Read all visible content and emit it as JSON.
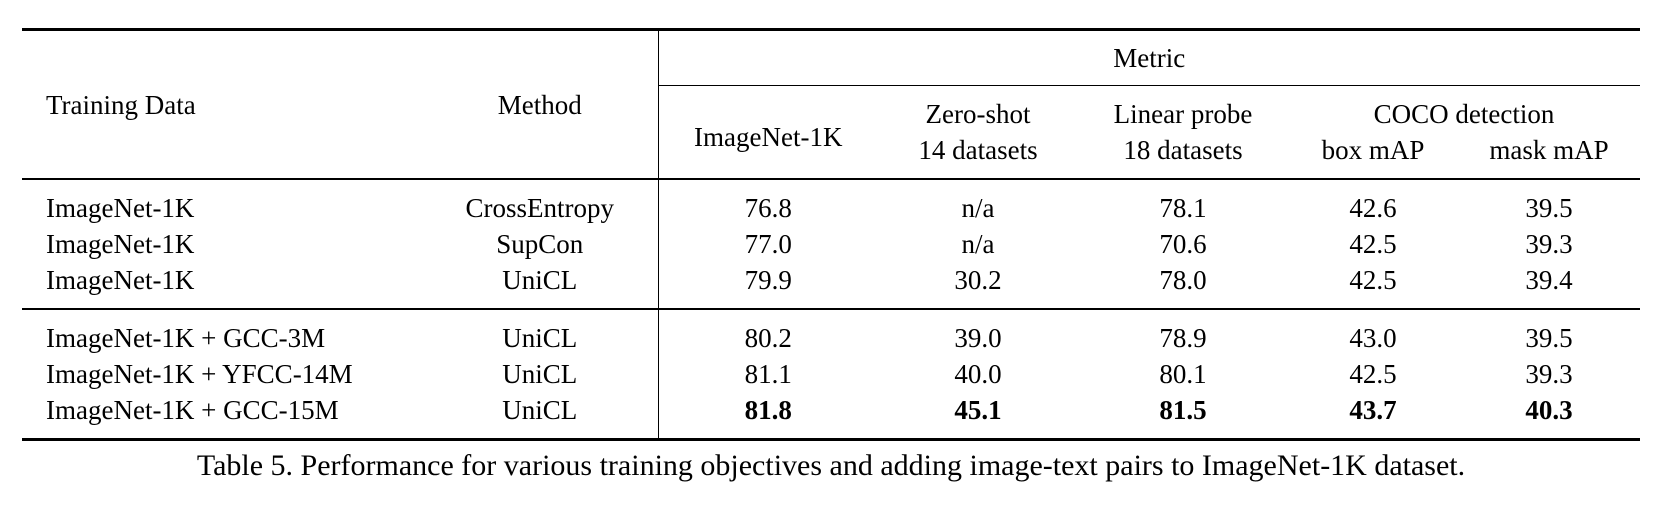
{
  "header": {
    "training_data": "Training Data",
    "method": "Method",
    "metric": "Metric",
    "imagenet": "ImageNet-1K",
    "zero_shot": [
      "Zero-shot",
      "14 datasets"
    ],
    "linear_probe": [
      "Linear probe",
      "18 datasets"
    ],
    "coco": "COCO detection",
    "box": "box mAP",
    "mask": "mask mAP"
  },
  "groups": [
    [
      [
        "ImageNet-1K",
        "CrossEntropy",
        "76.8",
        "n/a",
        "78.1",
        "42.6",
        "39.5"
      ],
      [
        "ImageNet-1K",
        "SupCon",
        "77.0",
        "n/a",
        "70.6",
        "42.5",
        "39.3"
      ],
      [
        "ImageNet-1K",
        "UniCL",
        "79.9",
        "30.2",
        "78.0",
        "42.5",
        "39.4"
      ]
    ],
    [
      [
        "ImageNet-1K + GCC-3M",
        "UniCL",
        "80.2",
        "39.0",
        "78.9",
        "43.0",
        "39.5"
      ],
      [
        "ImageNet-1K + YFCC-14M",
        "UniCL",
        "81.1",
        "40.0",
        "80.1",
        "42.5",
        "39.3"
      ],
      [
        "ImageNet-1K + GCC-15M",
        "UniCL",
        "81.8",
        "45.1",
        "81.5",
        "43.7",
        "40.3"
      ]
    ]
  ],
  "caption": "Table 5. Performance for various training objectives and adding image-text pairs to ImageNet-1K dataset."
}
